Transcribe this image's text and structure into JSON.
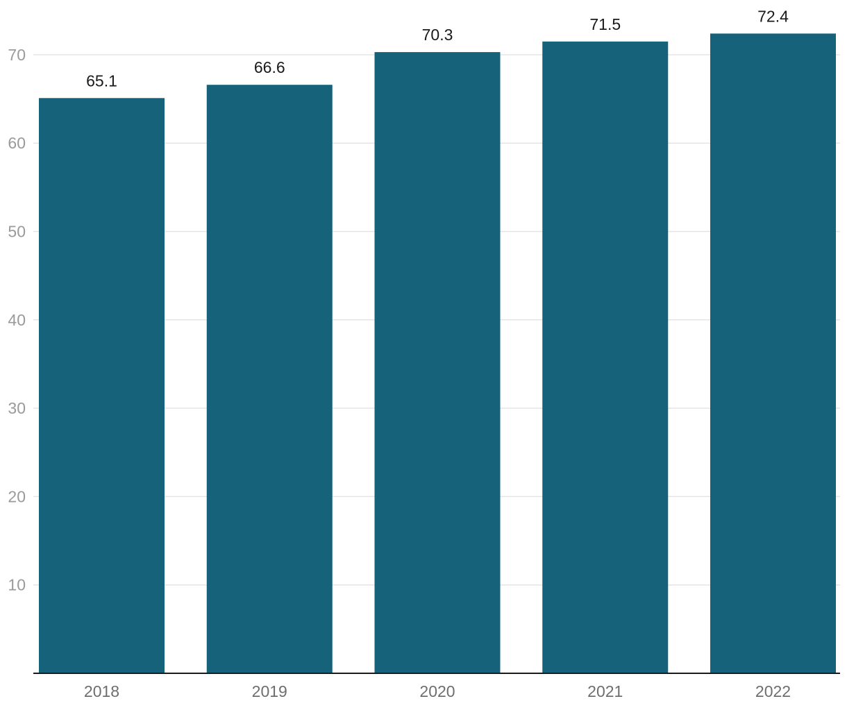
{
  "chart_data": {
    "type": "bar",
    "title": "",
    "xlabel": "",
    "ylabel": "",
    "categories": [
      "2018",
      "2019",
      "2020",
      "2021",
      "2022"
    ],
    "values": [
      65.1,
      66.6,
      70.3,
      71.5,
      72.4
    ],
    "data_labels": [
      "65.1",
      "66.6",
      "70.3",
      "71.5",
      "72.4"
    ],
    "yticks": [
      10,
      20,
      30,
      40,
      50,
      60,
      70
    ],
    "ylim": [
      0,
      75
    ],
    "grid": true,
    "legend": "none",
    "colors": {
      "bar": "#17627b",
      "grid": "#e4e4e4",
      "axis": "#1a1a1a",
      "tick_text": "#9a9a9a",
      "category_text": "#6e6e6e",
      "label_text": "#1a1a1a"
    }
  }
}
